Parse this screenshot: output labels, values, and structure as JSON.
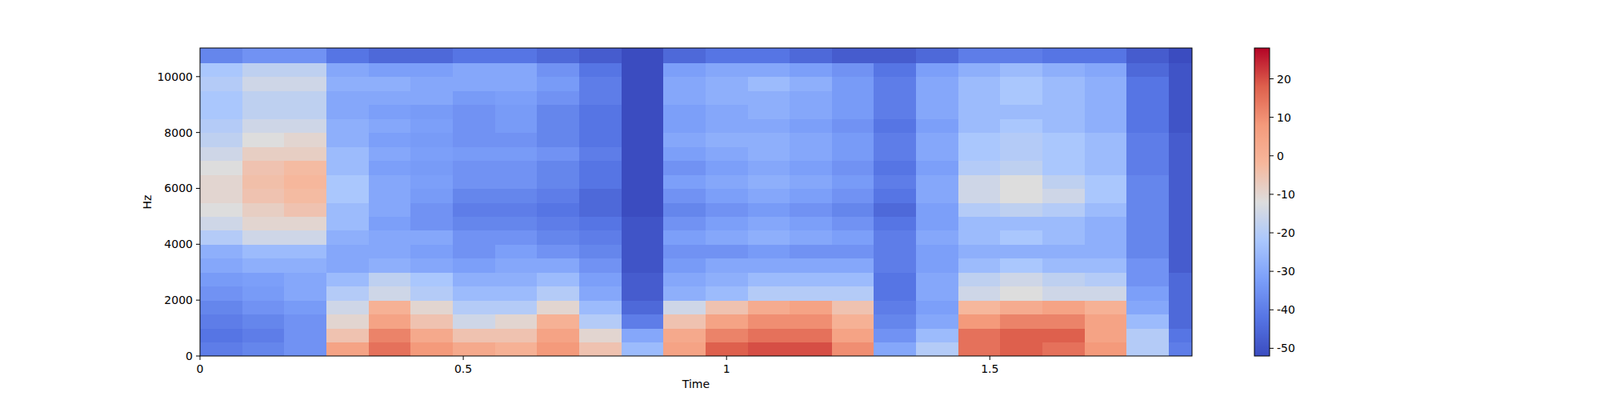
{
  "chart_data": {
    "type": "heatmap",
    "xlabel": "Time",
    "ylabel": "Hz",
    "xlim": [
      0,
      1.884
    ],
    "xticks": [
      0,
      0.5,
      1,
      1.5
    ],
    "ylim": [
      0,
      11025
    ],
    "yticks": [
      0,
      2000,
      4000,
      6000,
      8000,
      10000
    ],
    "zlim": [
      -52,
      28
    ],
    "zticks": [
      -50,
      -40,
      -30,
      -20,
      -10,
      0,
      10,
      20
    ],
    "x_bins": [
      0,
      0.08,
      0.16,
      0.24,
      0.32,
      0.4,
      0.48,
      0.56,
      0.64,
      0.72,
      0.8,
      0.88,
      0.96,
      1.04,
      1.12,
      1.2,
      1.28,
      1.36,
      1.44,
      1.52,
      1.6,
      1.68,
      1.76,
      1.84,
      1.884
    ],
    "y_bins": [
      0,
      500,
      1000,
      1500,
      2000,
      2500,
      3000,
      3500,
      4000,
      4500,
      5000,
      5500,
      6000,
      6500,
      7000,
      7500,
      8000,
      8500,
      9000,
      9500,
      10000,
      10500,
      11025
    ],
    "cells": [
      [
        -40,
        -38,
        -35,
        5,
        15,
        8,
        3,
        0,
        8,
        -5,
        -25,
        5,
        18,
        20,
        20,
        10,
        -30,
        -20,
        15,
        18,
        15,
        8,
        -20,
        -40
      ],
      [
        -42,
        -40,
        -35,
        -5,
        12,
        3,
        -5,
        -5,
        5,
        -10,
        -30,
        3,
        12,
        15,
        15,
        5,
        -35,
        -25,
        15,
        18,
        18,
        5,
        -20,
        -42
      ],
      [
        -40,
        -38,
        -35,
        -10,
        5,
        -5,
        -15,
        -10,
        0,
        -20,
        -40,
        -5,
        5,
        10,
        10,
        0,
        -38,
        -30,
        8,
        12,
        12,
        5,
        -25,
        -45
      ],
      [
        -38,
        -35,
        -33,
        -15,
        0,
        -10,
        -20,
        -20,
        -10,
        -25,
        -45,
        -15,
        -5,
        2,
        5,
        -5,
        -40,
        -32,
        -2,
        2,
        5,
        0,
        -30,
        -45
      ],
      [
        -35,
        -33,
        -30,
        -20,
        -15,
        -20,
        -25,
        -25,
        -20,
        -30,
        -48,
        -28,
        -25,
        -20,
        -20,
        -20,
        -42,
        -30,
        -15,
        -12,
        -15,
        -15,
        -32,
        -45
      ],
      [
        -33,
        -32,
        -30,
        -25,
        -18,
        -22,
        -28,
        -28,
        -25,
        -32,
        -48,
        -30,
        -28,
        -25,
        -25,
        -25,
        -42,
        -30,
        -18,
        -15,
        -18,
        -20,
        -35,
        -45
      ],
      [
        -30,
        -28,
        -28,
        -30,
        -28,
        -30,
        -32,
        -30,
        -30,
        -35,
        -50,
        -33,
        -30,
        -30,
        -30,
        -30,
        -40,
        -32,
        -25,
        -22,
        -25,
        -25,
        -35,
        -48
      ],
      [
        -28,
        -25,
        -25,
        -30,
        -30,
        -32,
        -35,
        -32,
        -35,
        -38,
        -50,
        -35,
        -35,
        -33,
        -35,
        -35,
        -40,
        -32,
        -28,
        -28,
        -28,
        -28,
        -38,
        -48
      ],
      [
        -20,
        -15,
        -15,
        -28,
        -30,
        -30,
        -35,
        -35,
        -38,
        -40,
        -50,
        -32,
        -30,
        -28,
        -30,
        -32,
        -40,
        -30,
        -25,
        -22,
        -25,
        -28,
        -38,
        -48
      ],
      [
        -15,
        -10,
        -10,
        -25,
        -32,
        -35,
        -38,
        -38,
        -40,
        -42,
        -50,
        -35,
        -32,
        -30,
        -32,
        -35,
        -42,
        -32,
        -25,
        -25,
        -25,
        -28,
        -38,
        -48
      ],
      [
        -12,
        -8,
        -5,
        -25,
        -30,
        -35,
        -40,
        -40,
        -42,
        -45,
        -52,
        -38,
        -35,
        -33,
        -35,
        -38,
        -45,
        -32,
        -20,
        -18,
        -20,
        -25,
        -38,
        -48
      ],
      [
        -10,
        -5,
        -3,
        -22,
        -30,
        -33,
        -38,
        -38,
        -40,
        -45,
        -52,
        -35,
        -32,
        -30,
        -32,
        -35,
        -42,
        -30,
        -15,
        -12,
        -15,
        -22,
        -38,
        -48
      ],
      [
        -10,
        -4,
        -2,
        -22,
        -30,
        -32,
        -35,
        -35,
        -38,
        -42,
        -52,
        -32,
        -30,
        -28,
        -30,
        -33,
        -40,
        -30,
        -15,
        -12,
        -18,
        -22,
        -38,
        -48
      ],
      [
        -12,
        -5,
        -3,
        -25,
        -32,
        -33,
        -35,
        -35,
        -38,
        -42,
        -52,
        -35,
        -32,
        -30,
        -32,
        -35,
        -42,
        -32,
        -20,
        -18,
        -22,
        -25,
        -40,
        -48
      ],
      [
        -15,
        -8,
        -8,
        -25,
        -30,
        -32,
        -33,
        -33,
        -35,
        -40,
        -52,
        -32,
        -30,
        -28,
        -30,
        -33,
        -40,
        -30,
        -22,
        -20,
        -22,
        -25,
        -40,
        -48
      ],
      [
        -18,
        -12,
        -10,
        -28,
        -32,
        -33,
        -35,
        -35,
        -38,
        -42,
        -52,
        -30,
        -28,
        -28,
        -30,
        -33,
        -40,
        -30,
        -22,
        -20,
        -22,
        -25,
        -40,
        -48
      ],
      [
        -20,
        -15,
        -15,
        -28,
        -30,
        -32,
        -35,
        -33,
        -38,
        -42,
        -52,
        -32,
        -30,
        -30,
        -32,
        -35,
        -42,
        -32,
        -25,
        -22,
        -25,
        -28,
        -42,
        -50
      ],
      [
        -22,
        -18,
        -18,
        -30,
        -32,
        -33,
        -35,
        -33,
        -38,
        -42,
        -52,
        -32,
        -30,
        -28,
        -30,
        -33,
        -40,
        -30,
        -25,
        -25,
        -25,
        -28,
        -42,
        -50
      ],
      [
        -22,
        -18,
        -18,
        -30,
        -30,
        -30,
        -33,
        -32,
        -35,
        -40,
        -52,
        -30,
        -28,
        -28,
        -30,
        -33,
        -40,
        -30,
        -25,
        -22,
        -25,
        -28,
        -42,
        -50
      ],
      [
        -20,
        -15,
        -15,
        -28,
        -28,
        -30,
        -30,
        -30,
        -33,
        -40,
        -52,
        -30,
        -28,
        -25,
        -28,
        -33,
        -40,
        -30,
        -25,
        -22,
        -25,
        -28,
        -42,
        -50
      ],
      [
        -22,
        -18,
        -18,
        -30,
        -32,
        -32,
        -30,
        -30,
        -35,
        -42,
        -52,
        -32,
        -30,
        -30,
        -32,
        -35,
        -42,
        -32,
        -28,
        -25,
        -28,
        -30,
        -45,
        -50
      ],
      [
        -38,
        -35,
        -35,
        -42,
        -45,
        -45,
        -42,
        -42,
        -45,
        -48,
        -52,
        -45,
        -42,
        -42,
        -45,
        -48,
        -48,
        -45,
        -40,
        -40,
        -42,
        -42,
        -48,
        -52
      ]
    ]
  }
}
